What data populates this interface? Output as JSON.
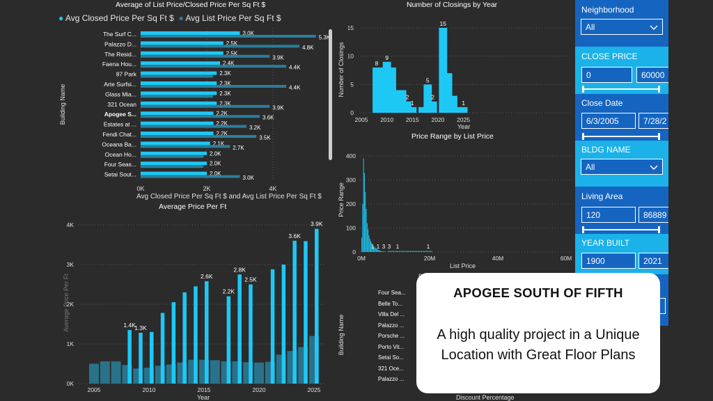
{
  "charts": {
    "list_vs_closed": {
      "title": "Average of List Price/Closed Price Per Sq Ft $",
      "legend": [
        "Avg Closed Price Per Sq Ft $",
        "Avg List Price Per Sq Ft $"
      ],
      "ylabel": "Building Name",
      "xlabel": "Avg Closed Price Per Sq Ft $ and Avg List Price Per Sq Ft $",
      "xticks": [
        "0K",
        "2K",
        "4K"
      ]
    },
    "closings": {
      "title": "Number of Closings by Year",
      "ylabel": "Number of Closings",
      "xlabel": "Year"
    },
    "avg_price": {
      "title": "Average Price Per Ft",
      "xlabel": "Year",
      "ylabel": "Average Price Per Ft"
    },
    "price_range": {
      "title": "Price Range by List Price",
      "ylabel": "Price Range",
      "xlabel": "List Price"
    },
    "discount": {
      "ylabel": "Building Name",
      "xlabel": "Discount Percentage",
      "partial_label": "Di",
      "buildings": [
        "Four Sea...",
        "Belle To...",
        "Villa Del ...",
        "Palazzo ...",
        "Porsche ...",
        "Porto Vit...",
        "Setai So...",
        "321 Oce...",
        "Palazzo ..."
      ]
    }
  },
  "chart_data": [
    {
      "type": "bar",
      "title": "Average of List Price/Closed Price Per Sq Ft $",
      "categories": [
        "The Surf C...",
        "Palazzo D...",
        "The Resid...",
        "Faena Hou...",
        "87 Park",
        "Arte Surfsi...",
        "Glass Mia...",
        "321 Ocean",
        "Apogee S...",
        "Estates at ...",
        "Fendi Chat...",
        "Oceana Ba...",
        "Ocean Ho...",
        "Four Seas...",
        "Setai Sout..."
      ],
      "series": [
        {
          "name": "Avg Closed Price Per Sq Ft $",
          "values": [
            3000,
            2500,
            2500,
            2400,
            2300,
            2300,
            2300,
            2300,
            2200,
            2200,
            2200,
            2100,
            2000,
            2000,
            2000
          ],
          "labels": [
            "3.0K",
            "2.5K",
            "2.5K",
            "2.4K",
            "2.3K",
            "2.3K",
            "2.3K",
            "2.3K",
            "2.2K",
            "2.2K",
            "2.2K",
            "2.1K",
            "2.0K",
            "2.0K",
            "2.0K"
          ]
        },
        {
          "name": "Avg List Price Per Sq Ft $",
          "values": [
            5300,
            4800,
            3900,
            4400,
            null,
            4400,
            null,
            3900,
            3600,
            3200,
            3500,
            2700,
            null,
            null,
            3000
          ],
          "labels": [
            "5.3K",
            "4.8K",
            "3.9K",
            "4.4K",
            "",
            "4.4K",
            "",
            "3.9K",
            "3.6K",
            "3.2K",
            "3.5K",
            "2.7K",
            "",
            "",
            "3.0K"
          ]
        }
      ],
      "highlighted": "Apogee S...",
      "xlim": [
        0,
        5500
      ],
      "orientation": "horizontal"
    },
    {
      "type": "bar",
      "title": "Number of Closings by Year",
      "x": [
        2008,
        2009,
        2010,
        2011,
        2012,
        2013,
        2014,
        2015,
        2017,
        2018,
        2019,
        2021,
        2022,
        2023,
        2024,
        2025
      ],
      "values": [
        8,
        8,
        9,
        8,
        4,
        4,
        2,
        1,
        1,
        5,
        2,
        15,
        7,
        3,
        1,
        1
      ],
      "data_labels": {
        "2008": "8",
        "2010": "9",
        "2014": "2",
        "2015": "1",
        "2018": "5",
        "2019": "2",
        "2021": "15",
        "2025": "1"
      },
      "yticks": [
        0,
        5,
        10,
        15
      ],
      "xticks": [
        2005,
        2010,
        2015,
        2020,
        2025
      ],
      "xlabel": "Year",
      "ylabel": "Number of Closings"
    },
    {
      "type": "bar",
      "title": "Average Price Per Ft",
      "x": [
        2005,
        2006,
        2007,
        2008,
        2009,
        2010,
        2011,
        2012,
        2013,
        2014,
        2015,
        2016,
        2017,
        2018,
        2019,
        2020,
        2021,
        2022,
        2023,
        2024,
        2025
      ],
      "series": [
        {
          "name": "",
          "values": [
            null,
            null,
            null,
            1350,
            1280,
            1300,
            1780,
            2050,
            2300,
            2450,
            2580,
            null,
            2200,
            2750,
            2500,
            null,
            2880,
            3000,
            3600,
            3590,
            3900
          ]
        },
        {
          "name": "",
          "values": [
            500,
            560,
            560,
            470,
            380,
            400,
            450,
            480,
            530,
            600,
            600,
            590,
            560,
            560,
            540,
            530,
            550,
            730,
            820,
            920,
            1200
          ]
        }
      ],
      "data_labels": {
        "2008": "1.4K",
        "2009": "1.3K",
        "2015": "2.6K",
        "2017": "2.2K",
        "2018": "2.8K",
        "2019": "2.5K",
        "2023": "3.6K",
        "2025": "3.9K"
      },
      "yticks": [
        "0K",
        "1K",
        "2K",
        "3K",
        "4K"
      ],
      "xticks": [
        2005,
        2010,
        2015,
        2020,
        2025
      ],
      "xlabel": "Year",
      "ylabel": "Average Price Per Ft"
    },
    {
      "type": "bar",
      "title": "Price Range by List Price",
      "yticks": [
        0,
        100,
        200,
        300,
        400
      ],
      "xticks": [
        "0M",
        "20M",
        "40M",
        "60M"
      ],
      "data_labels": [
        "1",
        "1",
        "3",
        "3",
        "1",
        "1"
      ],
      "xlabel": "List Price",
      "ylabel": "Price Range"
    }
  ],
  "slicers": {
    "neighborhood": {
      "title": "Neighborhood",
      "value": "All"
    },
    "close_price": {
      "title": "CLOSE PRICE",
      "min": "0",
      "max": "60000"
    },
    "close_date": {
      "title": "Close Date",
      "min": "6/3/2005",
      "max": "7/28/2"
    },
    "bldg_name": {
      "title": "BLDG NAME",
      "value": "All"
    },
    "living_area": {
      "title": "Living Area",
      "min": "120",
      "max": "86889"
    },
    "year_built": {
      "title": "YEAR BUILT",
      "min": "1900",
      "max": "2021"
    }
  },
  "overlay": {
    "title": "APOGEE SOUTH OF FIFTH",
    "description": "A high quality project in a Unique Location with Great Floor Plans"
  },
  "colors": {
    "background": "#2b2b2b",
    "bar_primary": "#1ec8f5",
    "bar_secondary": "#2a7f9b",
    "slicer_panel": "#1565c0",
    "slicer_highlight": "#1ab2e8"
  }
}
